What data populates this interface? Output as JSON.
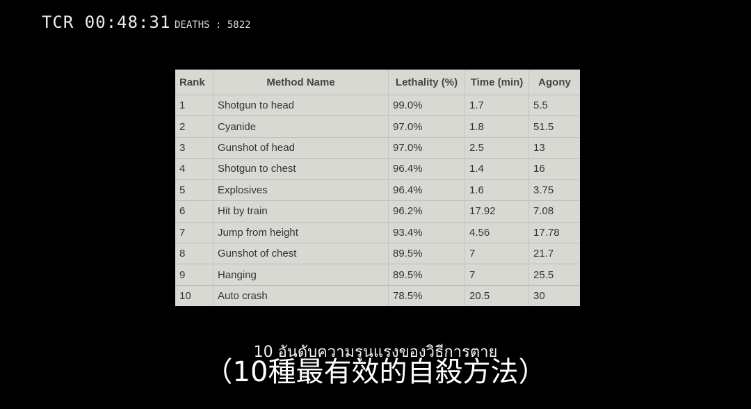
{
  "overlay": {
    "timecode": "TCR 00:48:31",
    "deaths_label": "DEATHS : 5822"
  },
  "table": {
    "headers": [
      "Rank",
      "Method Name",
      "Lethality (%)",
      "Time (min)",
      "Agony"
    ],
    "rows": [
      [
        "1",
        "Shotgun to head",
        "99.0%",
        "1.7",
        "5.5"
      ],
      [
        "2",
        "Cyanide",
        "97.0%",
        "1.8",
        "51.5"
      ],
      [
        "3",
        "Gunshot of head",
        "97.0%",
        "2.5",
        "13"
      ],
      [
        "4",
        "Shotgun to chest",
        "96.4%",
        "1.4",
        "16"
      ],
      [
        "5",
        "Explosives",
        "96.4%",
        "1.6",
        "3.75"
      ],
      [
        "6",
        "Hit by train",
        "96.2%",
        "17.92",
        "7.08"
      ],
      [
        "7",
        "Jump from height",
        "93.4%",
        "4.56",
        "17.78"
      ],
      [
        "8",
        "Gunshot of chest",
        "89.5%",
        "7",
        "21.7"
      ],
      [
        "9",
        "Hanging",
        "89.5%",
        "7",
        "25.5"
      ],
      [
        "10",
        "Auto crash",
        "78.5%",
        "20.5",
        "30"
      ]
    ]
  },
  "subtitles": {
    "thai": "10 อันดับความรุนแรงของวิธีการตาย",
    "chinese": "（10種最有效的自殺方法）"
  }
}
